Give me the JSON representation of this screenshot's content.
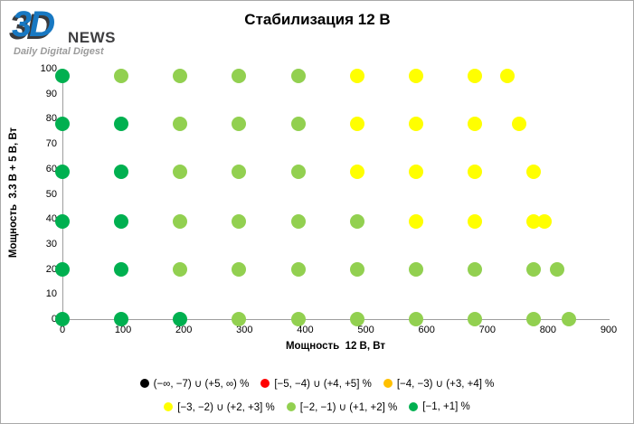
{
  "logo": {
    "mark": "3D",
    "name": "NEWS",
    "tagline": "Daily Digital Digest"
  },
  "chart_data": {
    "type": "scatter",
    "title": "Стабилизация 12 В",
    "xlabel": "Мощность  12 В, Вт",
    "ylabel": "Мощность  3.3 В + 5 В, Вт",
    "xlim": [
      0,
      900
    ],
    "ylim": [
      0,
      100
    ],
    "x_ticks": [
      0,
      100,
      200,
      300,
      400,
      500,
      600,
      700,
      800,
      900
    ],
    "y_ticks": [
      0,
      10,
      20,
      30,
      40,
      50,
      60,
      70,
      80,
      90,
      100
    ],
    "grid": false,
    "legend_position": "bottom",
    "colors": {
      "black": "#000000",
      "red": "#ff0000",
      "orange": "#ffc000",
      "yellow": "#ffff00",
      "light_green": "#92d050",
      "dark_green": "#00b050"
    },
    "series": [
      {
        "name": "[−1, +1] %",
        "color": "#00b050",
        "points": [
          [
            0,
            97
          ],
          [
            0,
            78
          ],
          [
            97,
            78
          ],
          [
            0,
            59
          ],
          [
            97,
            59
          ],
          [
            0,
            39
          ],
          [
            97,
            39
          ],
          [
            0,
            20
          ],
          [
            97,
            20
          ],
          [
            0,
            0
          ],
          [
            97,
            0
          ],
          [
            194,
            0
          ]
        ]
      },
      {
        "name": "[−2, −1) ∪ (+1, +2] %",
        "color": "#92d050",
        "points": [
          [
            97,
            97
          ],
          [
            194,
            97
          ],
          [
            291,
            97
          ],
          [
            389,
            97
          ],
          [
            194,
            78
          ],
          [
            291,
            78
          ],
          [
            389,
            78
          ],
          [
            194,
            59
          ],
          [
            291,
            59
          ],
          [
            389,
            59
          ],
          [
            194,
            39
          ],
          [
            291,
            39
          ],
          [
            389,
            39
          ],
          [
            486,
            39
          ],
          [
            194,
            20
          ],
          [
            291,
            20
          ],
          [
            389,
            20
          ],
          [
            486,
            20
          ],
          [
            583,
            20
          ],
          [
            680,
            20
          ],
          [
            777,
            20
          ],
          [
            815,
            20
          ],
          [
            291,
            0
          ],
          [
            389,
            0
          ],
          [
            486,
            0
          ],
          [
            583,
            0
          ],
          [
            680,
            0
          ],
          [
            777,
            0
          ],
          [
            834,
            0
          ]
        ]
      },
      {
        "name": "[−3, −2) ∪ (+2, +3] %",
        "color": "#ffff00",
        "points": [
          [
            486,
            97
          ],
          [
            583,
            97
          ],
          [
            680,
            97
          ],
          [
            733,
            97
          ],
          [
            486,
            78
          ],
          [
            583,
            78
          ],
          [
            680,
            78
          ],
          [
            753,
            78
          ],
          [
            486,
            59
          ],
          [
            583,
            59
          ],
          [
            680,
            59
          ],
          [
            777,
            59
          ],
          [
            583,
            39
          ],
          [
            680,
            39
          ],
          [
            777,
            39
          ],
          [
            794,
            39
          ]
        ]
      }
    ],
    "legend_rows": [
      [
        {
          "label": "(−∞, −7) ∪ (+5, ∞) %",
          "color": "#000000"
        },
        {
          "label": "[−5, −4) ∪ (+4, +5] %",
          "color": "#ff0000"
        },
        {
          "label": "[−4, −3) ∪ (+3, +4] %",
          "color": "#ffc000"
        }
      ],
      [
        {
          "label": "[−3, −2) ∪ (+2, +3] %",
          "color": "#ffff00"
        },
        {
          "label": "[−2, −1) ∪ (+1, +2] %",
          "color": "#92d050"
        },
        {
          "label": "[−1, +1] %",
          "color": "#00b050"
        }
      ]
    ]
  }
}
